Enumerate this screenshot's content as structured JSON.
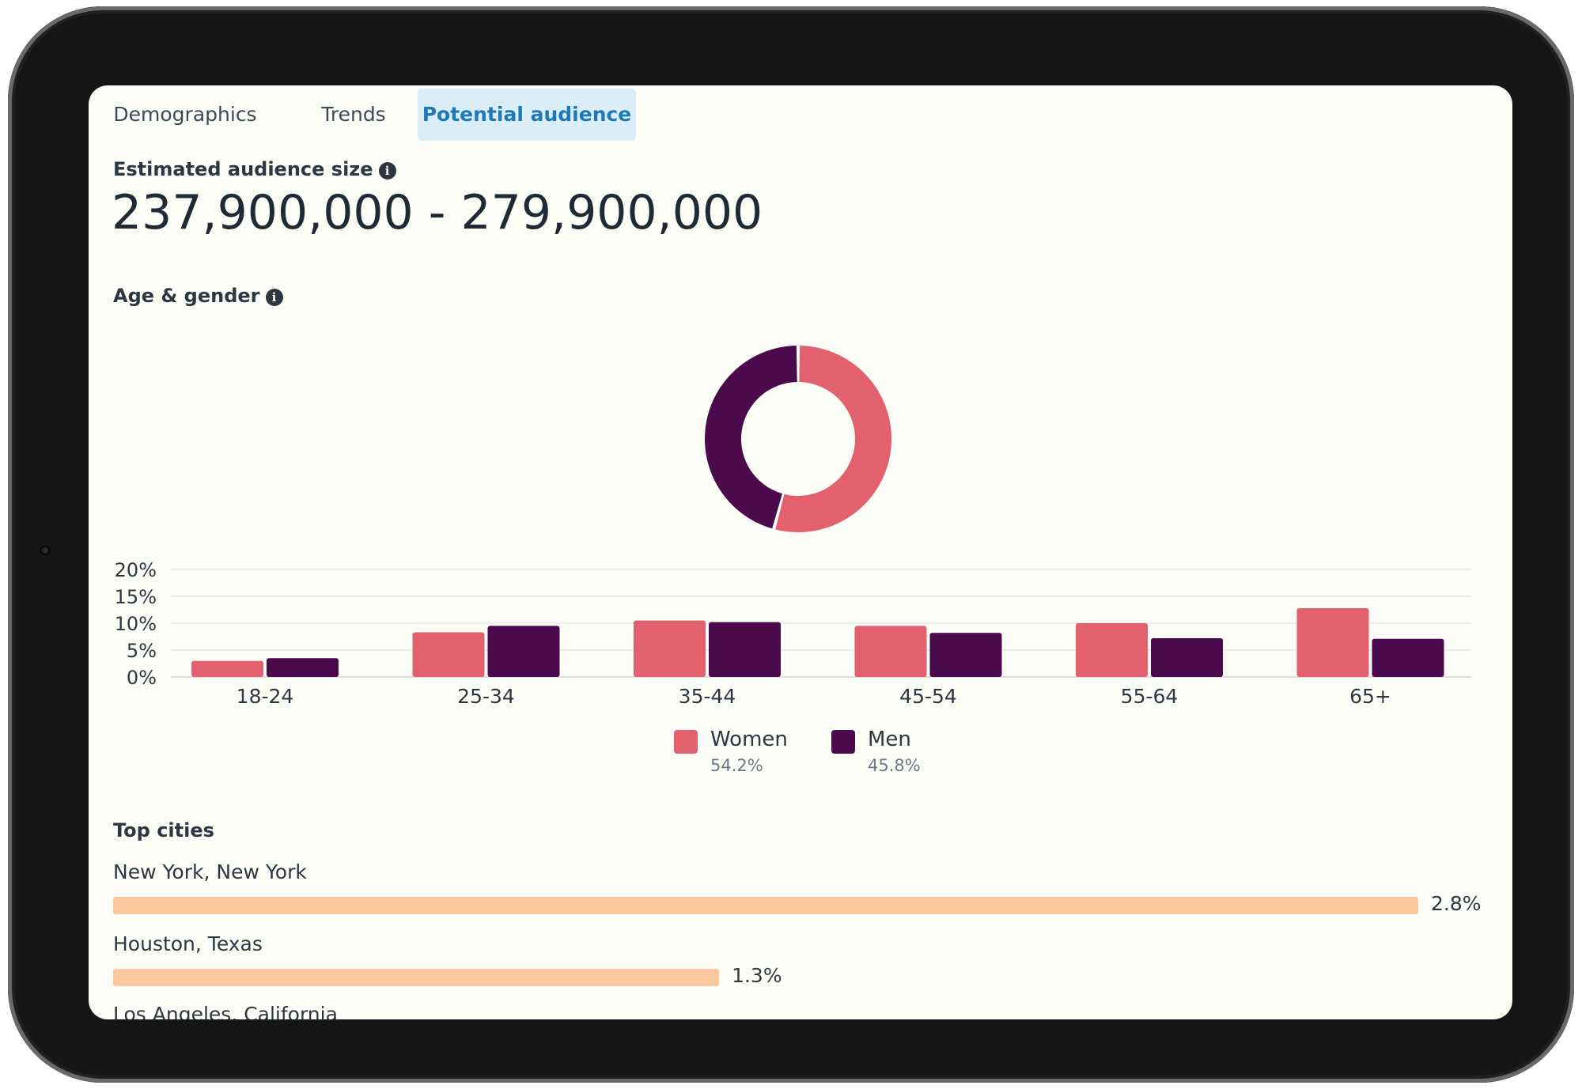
{
  "tabs": [
    {
      "label": "Demographics",
      "active": false
    },
    {
      "label": "Trends",
      "active": false
    },
    {
      "label": "Potential audience",
      "active": true
    }
  ],
  "audience": {
    "label": "Estimated audience size",
    "range": "237,900,000 - 279,900,000",
    "info_icon": "info-icon"
  },
  "age_gender": {
    "label": "Age & gender",
    "info_icon": "info-icon"
  },
  "colors": {
    "women": "#e3606e",
    "men": "#4a0a4c",
    "city_bar": "#fbc79c",
    "active_tab": "#1f79b9"
  },
  "chart_data": [
    {
      "type": "pie",
      "labels": [
        "Women",
        "Men"
      ],
      "values": [
        54.2,
        45.8
      ],
      "donut": true
    },
    {
      "type": "bar",
      "categories": [
        "18-24",
        "25-34",
        "35-44",
        "45-54",
        "55-64",
        "65+"
      ],
      "series": [
        {
          "name": "Women",
          "values": [
            3,
            8.3,
            10.5,
            9.5,
            10,
            12.8
          ]
        },
        {
          "name": "Men",
          "values": [
            3.5,
            9.5,
            10.2,
            8.2,
            7.2,
            7.1
          ]
        }
      ],
      "yticks": [
        "0%",
        "5%",
        "10%",
        "15%",
        "20%"
      ],
      "ylim": [
        0,
        20
      ],
      "grid": true,
      "legend": [
        {
          "name": "Women",
          "pct": "54.2%"
        },
        {
          "name": "Men",
          "pct": "45.8%"
        }
      ],
      "legend_placement": "bottom-center"
    }
  ],
  "top_cities": {
    "label": "Top cities",
    "items": [
      {
        "name": "New York, New York",
        "value": 2.8,
        "pct": "2.8%"
      },
      {
        "name": "Houston, Texas",
        "value": 1.3,
        "pct": "1.3%"
      },
      {
        "name": "Los Angeles, California",
        "value": null,
        "pct": ""
      }
    ]
  }
}
